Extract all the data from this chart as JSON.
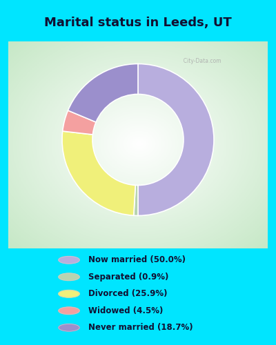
{
  "title": "Marital status in Leeds, UT",
  "slices": [
    {
      "label": "Now married (50.0%)",
      "value": 50.0,
      "color": "#b8aede"
    },
    {
      "label": "Separated (0.9%)",
      "value": 0.9,
      "color": "#b8d4b0"
    },
    {
      "label": "Divorced (25.9%)",
      "value": 25.9,
      "color": "#f0f07a"
    },
    {
      "label": "Widowed (4.5%)",
      "value": 4.5,
      "color": "#f4a0a0"
    },
    {
      "label": "Never married (18.7%)",
      "value": 18.7,
      "color": "#9b8fcc"
    }
  ],
  "bg_color_outer": "#00e5ff",
  "bg_color_chart_center": "#ffffff",
  "bg_color_chart_edge": "#c8e8c8",
  "title_color": "#111133",
  "title_fontsize": 13,
  "donut_width": 0.4,
  "start_angle": 90,
  "watermark": "  City-Data.com"
}
